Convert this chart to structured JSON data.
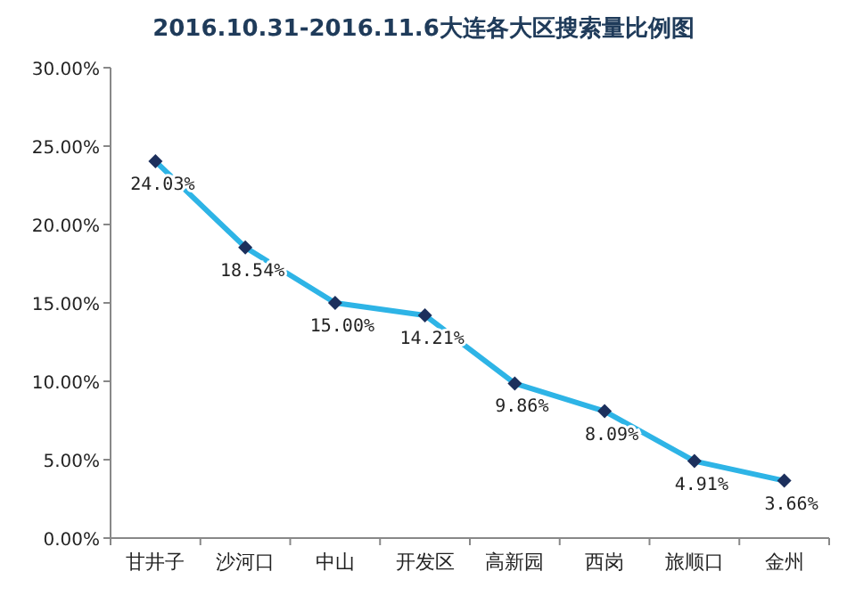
{
  "chart_data": {
    "type": "line",
    "title": "2016.10.31-2016.11.6大连各大区搜索量比例图",
    "categories": [
      "甘井子",
      "沙河口",
      "中山",
      "开发区",
      "高新园",
      "西岗",
      "旅顺口",
      "金州"
    ],
    "series": [
      {
        "color": "#2eb4e6",
        "values": [
          24.03,
          18.54,
          15.0,
          14.21,
          9.86,
          8.09,
          4.91,
          3.66
        ],
        "value_labels": [
          "24.03%",
          "18.54%",
          "15.00%",
          "14.21%",
          "9.86%",
          "8.09%",
          "4.91%",
          "3.66%"
        ]
      }
    ],
    "ylim": [
      0,
      30
    ],
    "yticks": [
      {
        "value": 0,
        "label": "0.00%"
      },
      {
        "value": 5,
        "label": "5.00%"
      },
      {
        "value": 10,
        "label": "10.00%"
      },
      {
        "value": 15,
        "label": "15.00%"
      },
      {
        "value": 20,
        "label": "20.00%"
      },
      {
        "value": 25,
        "label": "25.00%"
      },
      {
        "value": 30,
        "label": "30.00%"
      }
    ],
    "marker": "diamond",
    "line_style": "solid",
    "grid": false
  }
}
